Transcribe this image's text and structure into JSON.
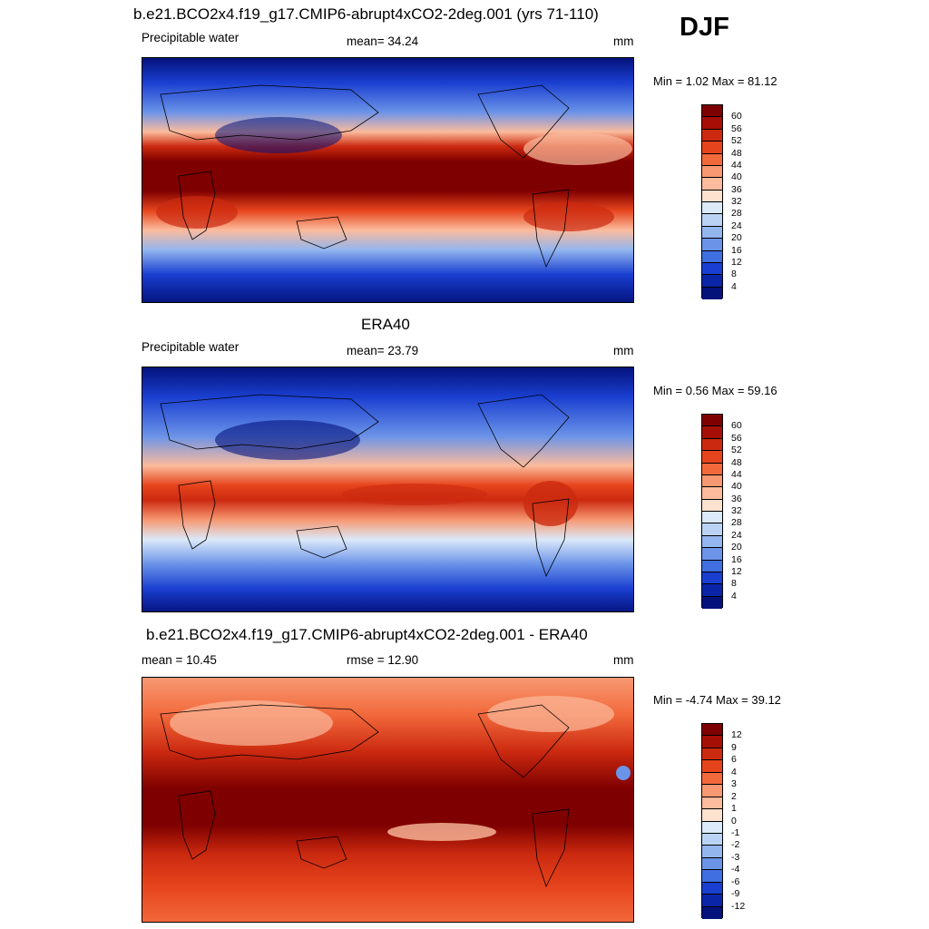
{
  "season": "DJF",
  "panels": [
    {
      "id": "model",
      "title": "b.e21.BCO2x4.f19_g17.CMIP6-abrupt4xCO2-2deg.001 (yrs 71-110)",
      "left_label": "Precipitable water",
      "center_label": "mean=  34.24",
      "units": "mm",
      "minmax": "Min =   1.02 Max =  81.12"
    },
    {
      "id": "obs",
      "title": "ERA40",
      "left_label": "Precipitable water",
      "center_label": "mean=  23.79",
      "units": "mm",
      "minmax": "Min =   0.56 Max =  59.16"
    },
    {
      "id": "diff",
      "title": "b.e21.BCO2x4.f19_g17.CMIP6-abrupt4xCO2-2deg.001 - ERA40",
      "left_label": "mean =  10.45",
      "center_label": "rmse =  12.90",
      "units": "mm",
      "minmax": "Min =  -4.74 Max =  39.12"
    }
  ],
  "colorbars": {
    "abs": {
      "labels": [
        "60",
        "56",
        "52",
        "48",
        "44",
        "40",
        "36",
        "32",
        "28",
        "24",
        "20",
        "16",
        "12",
        "8",
        "4"
      ],
      "colors": [
        "#7f0000",
        "#a50f06",
        "#cc2a10",
        "#e6441c",
        "#f2693c",
        "#f79872",
        "#fbbb9c",
        "#fde2d0",
        "#dbe9f9",
        "#bad3f5",
        "#93b6ef",
        "#6b93e8",
        "#3f6fe0",
        "#1a3fd0",
        "#0b25a8",
        "#04127c"
      ]
    },
    "diff": {
      "labels": [
        "12",
        "9",
        "6",
        "4",
        "3",
        "2",
        "1",
        "0",
        "-1",
        "-2",
        "-3",
        "-4",
        "-6",
        "-9",
        "-12"
      ],
      "colors": [
        "#7f0000",
        "#a50f06",
        "#cc2a10",
        "#e6441c",
        "#f2693c",
        "#f79872",
        "#fbbb9c",
        "#fde2d0",
        "#dbe9f9",
        "#bad3f5",
        "#93b6ef",
        "#6b93e8",
        "#3f6fe0",
        "#1a3fd0",
        "#0b25a8",
        "#04127c"
      ]
    }
  }
}
